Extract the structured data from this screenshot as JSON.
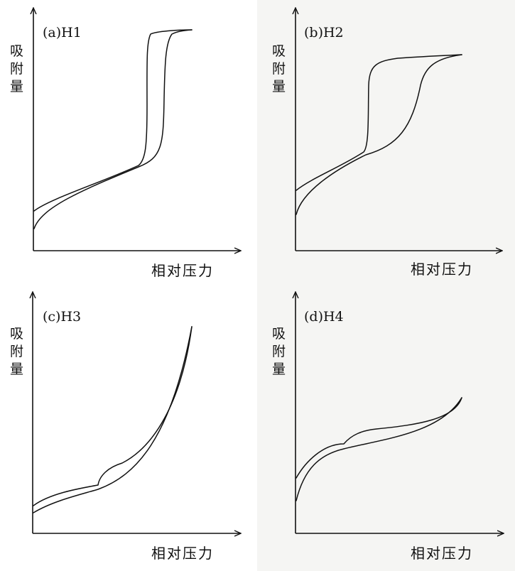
{
  "panels": [
    {
      "label": "(a)H1",
      "ylabel": "吸附量",
      "xlabel": "相对压力"
    },
    {
      "label": "(b)H2",
      "ylabel": "吸附量",
      "xlabel": "相对压力"
    },
    {
      "label": "(c)H3",
      "ylabel": "吸附量",
      "xlabel": "相对压力"
    },
    {
      "label": "(d)H4",
      "ylabel": "吸附量",
      "xlabel": "相对压力"
    }
  ]
}
